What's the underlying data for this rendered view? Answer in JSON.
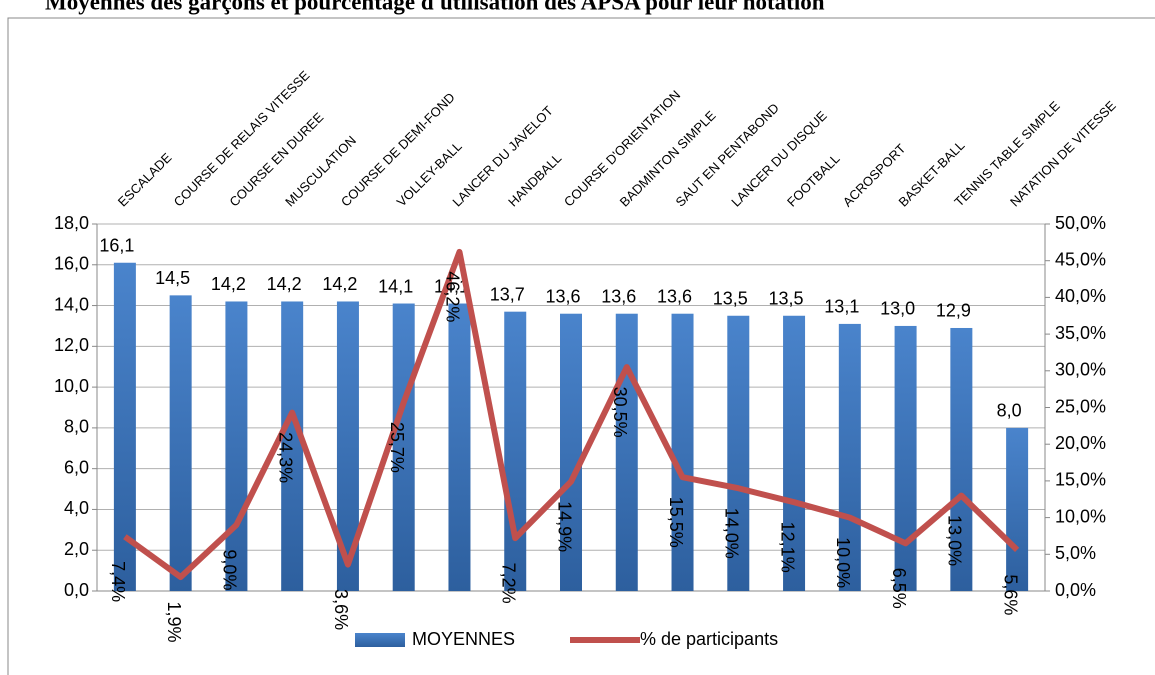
{
  "chart_data": {
    "type": "bar_line",
    "title": "Moyennes des garçons et pourcentage d'utilisation des APSA pour leur notation",
    "categories": [
      "ESCALADE",
      "COURSE DE RELAIS VITESSE",
      "COURSE EN DUREE",
      "MUSCULATION",
      "COURSE DE DEMI-FOND",
      "VOLLEY-BALL",
      "LANCER DU JAVELOT",
      "HANDBALL",
      "COURSE D'ORIENTATION",
      "BADMINTON SIMPLE",
      "SAUT EN PENTABOND",
      "LANCER DU DISQUE",
      "FOOTBALL",
      "ACROSPORT",
      "BASKET-BALL",
      "TENNIS TABLE SIMPLE",
      "NATATION DE VITESSE"
    ],
    "series": [
      {
        "name": "MOYENNES",
        "color": "#3a6fb5",
        "type": "bar",
        "values": [
          16.1,
          14.5,
          14.2,
          14.2,
          14.2,
          14.1,
          14.1,
          13.7,
          13.6,
          13.6,
          13.6,
          13.5,
          13.5,
          13.1,
          13.0,
          12.9,
          8.0
        ],
        "value_labels": [
          "16,1",
          "14,5",
          "14,2",
          "14,2",
          "14,2",
          "14,1",
          "14,1",
          "13,7",
          "13,6",
          "13,6",
          "13,6",
          "13,5",
          "13,5",
          "13,1",
          "13,0",
          "12,9",
          "8,0"
        ]
      },
      {
        "name": "% de participants",
        "color": "#c0504d",
        "type": "line",
        "axis": "y2",
        "values": [
          7.4,
          1.9,
          9.0,
          24.3,
          3.6,
          25.7,
          46.2,
          7.2,
          14.9,
          30.5,
          15.5,
          14.0,
          12.1,
          10.0,
          6.5,
          13.0,
          5.6
        ],
        "value_labels": [
          "7,4%",
          "1,9%",
          "9,0%",
          "24,3%",
          "3,6%",
          "25,7%",
          "46,2%",
          "7,2%",
          "14,9%",
          "30,5%",
          "15,5%",
          "14,0%",
          "12,1%",
          "10,0%",
          "6,5%",
          "13,0%",
          "5,6%"
        ]
      }
    ],
    "ylim": [
      0,
      18
    ],
    "yticks": [
      {
        "value": 0,
        "label": "0,0"
      },
      {
        "value": 2,
        "label": "2,0"
      },
      {
        "value": 4,
        "label": "4,0"
      },
      {
        "value": 6,
        "label": "6,0"
      },
      {
        "value": 8,
        "label": "8,0"
      },
      {
        "value": 10,
        "label": "10,0"
      },
      {
        "value": 12,
        "label": "12,0"
      },
      {
        "value": 14,
        "label": "14,0"
      },
      {
        "value": 16,
        "label": "16,0"
      },
      {
        "value": 18,
        "label": "18,0"
      }
    ],
    "y2lim": [
      0,
      50
    ],
    "y2ticks": [
      {
        "value": 0,
        "label": "0,0%"
      },
      {
        "value": 5,
        "label": "5,0%"
      },
      {
        "value": 10,
        "label": "10,0%"
      },
      {
        "value": 15,
        "label": "15,0%"
      },
      {
        "value": 20,
        "label": "20,0%"
      },
      {
        "value": 25,
        "label": "25,0%"
      },
      {
        "value": 30,
        "label": "30,0%"
      },
      {
        "value": 35,
        "label": "35,0%"
      },
      {
        "value": 40,
        "label": "40,0%"
      },
      {
        "value": 45,
        "label": "45,0%"
      },
      {
        "value": 50,
        "label": "50,0%"
      }
    ],
    "grid": true,
    "legend": "bottom"
  }
}
